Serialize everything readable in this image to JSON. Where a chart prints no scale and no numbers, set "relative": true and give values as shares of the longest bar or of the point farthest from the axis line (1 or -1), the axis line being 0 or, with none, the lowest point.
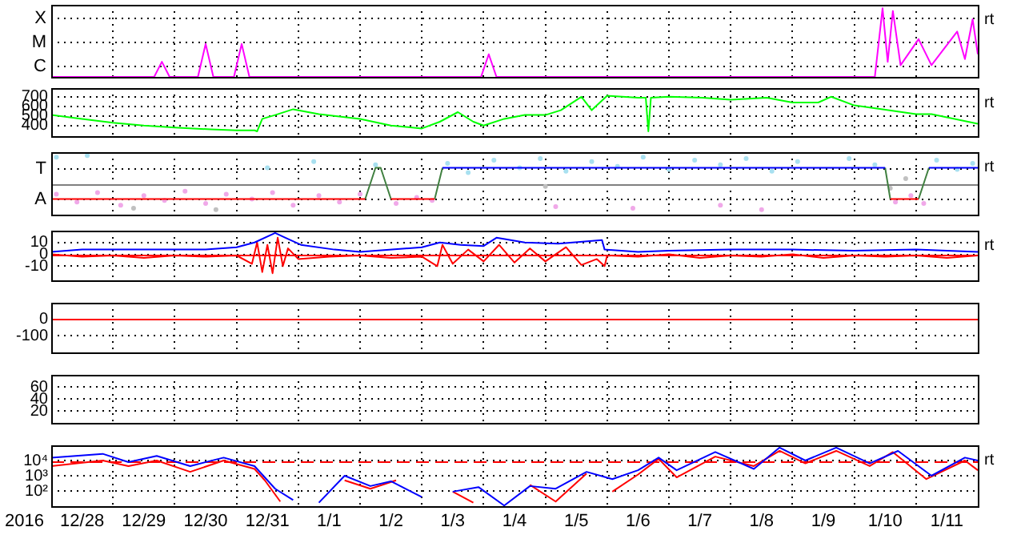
{
  "chart_data": [
    {
      "type": "line",
      "relative": true,
      "xlim": [
        "2016-12-28",
        "2017-01-12"
      ],
      "xticks": [
        {
          "value": "2016-12-29",
          "label": null
        },
        {
          "value": "2016-12-30",
          "label": null
        },
        {
          "value": "2016-12-31",
          "label": null
        },
        {
          "value": "2017-01-01",
          "label": null
        },
        {
          "value": "2017-01-02",
          "label": null
        },
        {
          "value": "2017-01-03",
          "label": null
        },
        {
          "value": "2017-01-04",
          "label": null
        },
        {
          "value": "2017-01-05",
          "label": null
        },
        {
          "value": "2017-01-06",
          "label": null
        },
        {
          "value": "2017-01-07",
          "label": null
        },
        {
          "value": "2017-01-08",
          "label": null
        },
        {
          "value": "2017-01-09",
          "label": null
        },
        {
          "value": "2017-01-10",
          "label": null
        },
        {
          "value": "2017-01-11",
          "label": null
        }
      ],
      "grid": true,
      "legend": false,
      "tick_labels": false,
      "marker": "none",
      "annotations": [
        "rt",
        "X",
        "M",
        "C"
      ],
      "series": [
        {
          "color": "#ff00ff",
          "x": [
            "2016-12-28T00:00",
            "2016-12-29T16:00",
            "2016-12-29T19:00",
            "2016-12-29T22:00",
            "2016-12-30T09:00",
            "2016-12-30T12:00",
            "2016-12-30T15:00",
            "2016-12-30T23:00",
            "2016-12-31T02:00",
            "2016-12-31T05:00",
            "2017-01-03T23:00",
            "2017-01-04T02:00",
            "2017-01-04T05:00",
            "2017-01-10T08:00",
            "2017-01-10T11:00",
            "2017-01-10T13:00",
            "2017-01-10T15:00",
            "2017-01-10T18:00",
            "2017-01-11T01:00",
            "2017-01-11T06:00",
            "2017-01-11T16:00",
            "2017-01-11T19:00",
            "2017-01-11T22:00",
            "2017-01-12T00:00"
          ],
          "values": [
            0,
            0,
            0.22,
            0,
            0,
            0.48,
            0,
            0,
            0.48,
            0,
            0,
            0.33,
            0,
            0,
            1,
            0.22,
            0.96,
            0.17,
            0.55,
            0.17,
            0.66,
            0.26,
            0.84,
            0.33
          ]
        }
      ]
    },
    {
      "type": "line",
      "ylim": [
        290,
        790
      ],
      "yticks": [
        700,
        600,
        500,
        400
      ],
      "xlim": [
        "2016-12-28",
        "2017-01-12"
      ],
      "xticks": [
        {
          "value": "2016-12-29",
          "label": null
        },
        {
          "value": "2016-12-30",
          "label": null
        },
        {
          "value": "2016-12-31",
          "label": null
        },
        {
          "value": "2017-01-01",
          "label": null
        },
        {
          "value": "2017-01-02",
          "label": null
        },
        {
          "value": "2017-01-03",
          "label": null
        },
        {
          "value": "2017-01-04",
          "label": null
        },
        {
          "value": "2017-01-05",
          "label": null
        },
        {
          "value": "2017-01-06",
          "label": null
        },
        {
          "value": "2017-01-07",
          "label": null
        },
        {
          "value": "2017-01-08",
          "label": null
        },
        {
          "value": "2017-01-09",
          "label": null
        },
        {
          "value": "2017-01-10",
          "label": null
        },
        {
          "value": "2017-01-11",
          "label": null
        }
      ],
      "grid": true,
      "legend": false,
      "tick_labels": "y",
      "marker": "none",
      "annotations": [
        "rt"
      ],
      "series": [
        {
          "color": "#00ff00",
          "x": [
            "2016-12-28T00:00",
            "2016-12-28T12:00",
            "2016-12-29T00:00",
            "2016-12-29T12:00",
            "2016-12-30T00:00",
            "2016-12-30T14:00",
            "2016-12-31T00:00",
            "2016-12-31T07:00",
            "2016-12-31T08:00",
            "2016-12-31T10:00",
            "2016-12-31T15:00",
            "2016-12-31T22:00",
            "2017-01-01T08:00",
            "2017-01-02T00:00",
            "2017-01-02T12:00",
            "2017-01-03T00:00",
            "2017-01-03T07:00",
            "2017-01-03T14:00",
            "2017-01-03T20:00",
            "2017-01-04T00:00",
            "2017-01-04T08:00",
            "2017-01-04T16:00",
            "2017-01-05T00:00",
            "2017-01-05T06:00",
            "2017-01-05T14:00",
            "2017-01-05T18:00",
            "2017-01-06T00:00",
            "2017-01-06T12:00",
            "2017-01-06T15:00",
            "2017-01-06T16:00",
            "2017-01-06T17:00",
            "2017-01-07T00:00",
            "2017-01-07T13:00",
            "2017-01-08T00:00",
            "2017-01-08T14:00",
            "2017-01-09T00:00",
            "2017-01-09T10:00",
            "2017-01-09T15:00",
            "2017-01-10T00:00",
            "2017-01-10T11:00",
            "2017-01-11T00:00",
            "2017-01-11T06:00",
            "2017-01-12T00:00"
          ],
          "values": [
            510,
            470,
            430,
            400,
            380,
            360,
            350,
            350,
            340,
            470,
            510,
            570,
            520,
            470,
            400,
            370,
            440,
            540,
            440,
            400,
            470,
            510,
            510,
            560,
            700,
            560,
            710,
            690,
            690,
            340,
            690,
            700,
            690,
            670,
            690,
            640,
            640,
            700,
            610,
            570,
            520,
            520,
            420
          ]
        }
      ]
    },
    {
      "type": "scatter",
      "relative": true,
      "xlim": [
        "2016-12-28",
        "2017-01-12"
      ],
      "xticks": [
        {
          "value": "2016-12-29",
          "label": null
        },
        {
          "value": "2016-12-30",
          "label": null
        },
        {
          "value": "2016-12-31",
          "label": null
        },
        {
          "value": "2017-01-01",
          "label": null
        },
        {
          "value": "2017-01-02",
          "label": null
        },
        {
          "value": "2017-01-03",
          "label": null
        },
        {
          "value": "2017-01-04",
          "label": null
        },
        {
          "value": "2017-01-05",
          "label": null
        },
        {
          "value": "2017-01-06",
          "label": null
        },
        {
          "value": "2017-01-07",
          "label": null
        },
        {
          "value": "2017-01-08",
          "label": null
        },
        {
          "value": "2017-01-09",
          "label": null
        },
        {
          "value": "2017-01-10",
          "label": null
        },
        {
          "value": "2017-01-11",
          "label": null
        }
      ],
      "grid": true,
      "legend": false,
      "tick_labels": false,
      "marker": "circle",
      "annotations": [
        "rt",
        "T",
        "A"
      ],
      "ref_lines": [
        {
          "axis": "y",
          "value": 0,
          "color": "#808080"
        }
      ],
      "series": [
        {
          "color": "#f0a8e8",
          "x": [
            "2016-12-28T02:00",
            "2016-12-28T10:00",
            "2016-12-28T18:00",
            "2016-12-29T03:00",
            "2016-12-29T12:00",
            "2016-12-29T20:00",
            "2016-12-30T04:00",
            "2016-12-30T12:00",
            "2016-12-30T20:00",
            "2016-12-31T06:00",
            "2016-12-31T14:00",
            "2016-12-31T22:00",
            "2017-01-01T08:00",
            "2017-01-01T16:00",
            "2017-01-02T00:00",
            "2017-01-02T14:00",
            "2017-01-02T22:00",
            "2017-01-03T04:00",
            "2017-01-05T04:00",
            "2017-01-06T10:00",
            "2017-01-07T20:00",
            "2017-01-08T12:00",
            "2017-01-10T16:00",
            "2017-01-10T22:00",
            "2017-01-11T03:00"
          ],
          "values": [
            -0.39,
            -0.67,
            -0.33,
            -0.78,
            -0.44,
            -0.61,
            -0.28,
            -0.72,
            -0.39,
            -0.56,
            -0.33,
            -0.78,
            -0.44,
            -0.67,
            -0.39,
            -0.72,
            -0.5,
            -0.61,
            -0.83,
            -0.89,
            -0.78,
            -0.94,
            -0.67,
            -0.44,
            -0.72
          ]
        },
        {
          "color": "#a8e0f0",
          "x": [
            "2016-12-28T02:00",
            "2016-12-28T14:00",
            "2016-12-31T12:00",
            "2017-01-01T06:00",
            "2017-01-02T06:00",
            "2017-01-03T10:00",
            "2017-01-03T18:00",
            "2017-01-04T04:00",
            "2017-01-04T14:00",
            "2017-01-04T22:00",
            "2017-01-05T08:00",
            "2017-01-05T18:00",
            "2017-01-06T04:00",
            "2017-01-06T14:00",
            "2017-01-07T00:00",
            "2017-01-07T10:00",
            "2017-01-07T20:00",
            "2017-01-08T06:00",
            "2017-01-08T16:00",
            "2017-01-09T02:00",
            "2017-01-09T12:00",
            "2017-01-09T22:00",
            "2017-01-10T08:00",
            "2017-01-11T08:00",
            "2017-01-11T16:00",
            "2017-01-11T22:00"
          ],
          "values": [
            0.94,
            1,
            0.56,
            0.78,
            0.67,
            0.72,
            0.39,
            0.83,
            0.56,
            0.89,
            0.44,
            0.78,
            0.61,
            0.94,
            0.5,
            0.83,
            0.67,
            0.89,
            0.44,
            0.78,
            null,
            0.89,
            0.67,
            0.83,
            0.5,
            0.72
          ]
        },
        {
          "color": "#c0c0c0",
          "x": [
            "2016-12-29T08:00",
            "2016-12-30T16:00",
            "2017-01-05T00:00",
            "2017-01-10T14:00",
            "2017-01-10T20:00"
          ],
          "values": [
            -0.89,
            -0.94,
            -0.11,
            -0.17,
            0.17
          ]
        },
        {
          "type": "line",
          "marker": "none",
          "color": "#ff0000",
          "x": [
            "2016-12-28T00:00",
            "2017-01-02T02:00",
            "2017-01-02T03:00",
            "2017-01-02T12:00",
            "2017-01-03T05:00",
            "2017-01-03T06:00",
            "2017-01-10T14:00",
            "2017-01-11T01:00"
          ],
          "values": [
            -0.56,
            -0.56,
            null,
            -0.56,
            -0.56,
            null,
            -0.56,
            -0.56
          ]
        },
        {
          "type": "line",
          "marker": "none",
          "color": "#0000ff",
          "x": [
            "2017-01-03T08:00",
            "2017-01-10T12:00",
            "2017-01-10T13:00",
            "2017-01-11T05:00",
            "2017-01-12T00:00"
          ],
          "values": [
            0.56,
            0.56,
            null,
            0.56,
            0.56
          ]
        },
        {
          "type": "line",
          "marker": "none",
          "color": "#408040",
          "x": [
            "2017-01-02T02:00",
            "2017-01-02T06:00",
            "2017-01-02T08:00",
            "2017-01-02T12:00",
            "2017-01-02T13:00",
            "2017-01-03T05:00",
            "2017-01-03T08:00",
            "2017-01-03T09:00",
            "2017-01-10T12:00",
            "2017-01-10T14:00",
            "2017-01-10T15:00",
            "2017-01-11T01:00",
            "2017-01-11T05:00"
          ],
          "values": [
            -0.56,
            0.56,
            0.56,
            -0.56,
            null,
            -0.56,
            0.56,
            null,
            0.56,
            -0.56,
            null,
            -0.56,
            0.56
          ]
        }
      ]
    },
    {
      "type": "line",
      "ylim": [
        -22,
        20
      ],
      "yticks": [
        10,
        0,
        -10
      ],
      "xlim": [
        "2016-12-28",
        "2017-01-12"
      ],
      "xticks": [
        {
          "value": "2016-12-29",
          "label": null
        },
        {
          "value": "2016-12-30",
          "label": null
        },
        {
          "value": "2016-12-31",
          "label": null
        },
        {
          "value": "2017-01-01",
          "label": null
        },
        {
          "value": "2017-01-02",
          "label": null
        },
        {
          "value": "2017-01-03",
          "label": null
        },
        {
          "value": "2017-01-04",
          "label": null
        },
        {
          "value": "2017-01-05",
          "label": null
        },
        {
          "value": "2017-01-06",
          "label": null
        },
        {
          "value": "2017-01-07",
          "label": null
        },
        {
          "value": "2017-01-08",
          "label": null
        },
        {
          "value": "2017-01-09",
          "label": null
        },
        {
          "value": "2017-01-10",
          "label": null
        },
        {
          "value": "2017-01-11",
          "label": null
        }
      ],
      "grid": true,
      "legend": false,
      "tick_labels": "y",
      "marker": "none",
      "annotations": [
        "rt"
      ],
      "ref_lines": [
        {
          "axis": "y",
          "value": 0,
          "color": "#ff0000"
        }
      ],
      "series": [
        {
          "color": "#0000ff",
          "x": [
            "2016-12-28T00:00",
            "2016-12-28T12:00",
            "2016-12-29T12:00",
            "2016-12-30T12:00",
            "2016-12-31T00:00",
            "2016-12-31T07:00",
            "2016-12-31T15:00",
            "2016-12-31T19:00",
            "2017-01-01T01:00",
            "2017-01-01T14:00",
            "2017-01-02T00:00",
            "2017-01-03T00:00",
            "2017-01-03T07:00",
            "2017-01-03T15:00",
            "2017-01-04T00:00",
            "2017-01-04T05:00",
            "2017-01-04T16:00",
            "2017-01-05T05:00",
            "2017-01-05T22:00",
            "2017-01-05T23:00",
            "2017-01-06T12:00",
            "2017-01-07T00:00",
            "2017-01-08T00:00",
            "2017-01-09T00:00",
            "2017-01-10T00:00",
            "2017-01-11T00:00",
            "2017-01-12T00:00"
          ],
          "values": [
            2,
            4,
            4,
            4,
            6,
            10,
            18,
            14,
            8,
            4,
            2,
            6,
            10,
            8,
            7,
            14,
            10,
            9,
            12,
            4,
            2,
            3,
            4,
            4,
            3,
            4,
            2
          ]
        },
        {
          "color": "#ff0000",
          "x": [
            "2016-12-28T00:00",
            "2016-12-28T12:00",
            "2016-12-29T00:00",
            "2016-12-29T12:00",
            "2016-12-30T00:00",
            "2016-12-30T12:00",
            "2016-12-31T00:00",
            "2016-12-31T06:00",
            "2016-12-31T08:00",
            "2016-12-31T10:00",
            "2016-12-31T12:00",
            "2016-12-31T14:00",
            "2016-12-31T16:00",
            "2016-12-31T18:00",
            "2016-12-31T20:00",
            "2017-01-01T00:00",
            "2017-01-01T12:00",
            "2017-01-02T00:00",
            "2017-01-02T12:00",
            "2017-01-03T00:00",
            "2017-01-03T06:00",
            "2017-01-03T08:00",
            "2017-01-03T12:00",
            "2017-01-03T18:00",
            "2017-01-04T00:00",
            "2017-01-04T06:00",
            "2017-01-04T12:00",
            "2017-01-04T18:00",
            "2017-01-05T00:00",
            "2017-01-05T08:00",
            "2017-01-05T14:00",
            "2017-01-05T20:00",
            "2017-01-05T23:00",
            "2017-01-06T00:00",
            "2017-01-06T12:00",
            "2017-01-07T00:00",
            "2017-01-07T12:00",
            "2017-01-08T00:00",
            "2017-01-08T12:00",
            "2017-01-09T00:00",
            "2017-01-09T12:00",
            "2017-01-10T00:00",
            "2017-01-10T12:00",
            "2017-01-11T00:00",
            "2017-01-11T12:00",
            "2017-01-12T00:00"
          ],
          "values": [
            0,
            -2,
            -1,
            -3,
            -1,
            -2,
            -1,
            -8,
            10,
            -15,
            8,
            -16,
            14,
            -10,
            5,
            -4,
            -2,
            -1,
            -3,
            -2,
            -10,
            8,
            -8,
            4,
            -6,
            8,
            -7,
            5,
            -6,
            6,
            -9,
            -4,
            -10,
            -1,
            -2,
            0,
            -3,
            -1,
            -2,
            0,
            -3,
            -1,
            -2,
            -1,
            -3,
            -1
          ]
        }
      ]
    },
    {
      "type": "line",
      "ylim": [
        -200,
        100
      ],
      "yticks": [
        0,
        -100
      ],
      "xlim": [
        "2016-12-28",
        "2017-01-12"
      ],
      "xticks": [
        {
          "value": "2016-12-29",
          "label": null
        },
        {
          "value": "2016-12-30",
          "label": null
        },
        {
          "value": "2016-12-31",
          "label": null
        },
        {
          "value": "2017-01-01",
          "label": null
        },
        {
          "value": "2017-01-02",
          "label": null
        },
        {
          "value": "2017-01-03",
          "label": null
        },
        {
          "value": "2017-01-04",
          "label": null
        },
        {
          "value": "2017-01-05",
          "label": null
        },
        {
          "value": "2017-01-06",
          "label": null
        },
        {
          "value": "2017-01-07",
          "label": null
        },
        {
          "value": "2017-01-08",
          "label": null
        },
        {
          "value": "2017-01-09",
          "label": null
        },
        {
          "value": "2017-01-10",
          "label": null
        },
        {
          "value": "2017-01-11",
          "label": null
        }
      ],
      "grid": true,
      "legend": false,
      "tick_labels": "y",
      "ref_lines": [
        {
          "axis": "y",
          "value": 0,
          "color": "#ff0000"
        }
      ]
    },
    {
      "type": "line",
      "ylim": [
        0,
        80
      ],
      "yticks": [
        60,
        40,
        20
      ],
      "xlim": [
        "2016-12-28",
        "2017-01-12"
      ],
      "xticks": [
        {
          "value": "2016-12-29",
          "label": null
        },
        {
          "value": "2016-12-30",
          "label": null
        },
        {
          "value": "2016-12-31",
          "label": null
        },
        {
          "value": "2017-01-01",
          "label": null
        },
        {
          "value": "2017-01-02",
          "label": null
        },
        {
          "value": "2017-01-03",
          "label": null
        },
        {
          "value": "2017-01-04",
          "label": null
        },
        {
          "value": "2017-01-05",
          "label": null
        },
        {
          "value": "2017-01-06",
          "label": null
        },
        {
          "value": "2017-01-07",
          "label": null
        },
        {
          "value": "2017-01-08",
          "label": null
        },
        {
          "value": "2017-01-09",
          "label": null
        },
        {
          "value": "2017-01-10",
          "label": null
        },
        {
          "value": "2017-01-11",
          "label": null
        }
      ],
      "grid": true,
      "legend": false,
      "tick_labels": "y"
    },
    {
      "type": "line",
      "log": true,
      "ylim": [
        10,
        100000
      ],
      "yticks": [
        {
          "value": 10000,
          "label": "10⁴"
        },
        {
          "value": 1000,
          "label": "10³"
        },
        {
          "value": 100,
          "label": "10²"
        }
      ],
      "xlabel": "2016",
      "xlim": [
        "2016-12-28",
        "2017-01-12"
      ],
      "xticks": [
        {
          "value": "2016-12-28T12:00",
          "label": "12/28"
        },
        {
          "value": "2016-12-29",
          "label": null
        },
        {
          "value": "2016-12-29T12:00",
          "label": "12/29"
        },
        {
          "value": "2016-12-30",
          "label": null
        },
        {
          "value": "2016-12-30T12:00",
          "label": "12/30"
        },
        {
          "value": "2016-12-31",
          "label": null
        },
        {
          "value": "2016-12-31T12:00",
          "label": "12/31"
        },
        {
          "value": "2017-01-01",
          "label": null
        },
        {
          "value": "2017-01-01T12:00",
          "label": "1/1"
        },
        {
          "value": "2017-01-02",
          "label": null
        },
        {
          "value": "2017-01-02T12:00",
          "label": "1/2"
        },
        {
          "value": "2017-01-03",
          "label": null
        },
        {
          "value": "2017-01-03T12:00",
          "label": "1/3"
        },
        {
          "value": "2017-01-04",
          "label": null
        },
        {
          "value": "2017-01-04T12:00",
          "label": "1/4"
        },
        {
          "value": "2017-01-05",
          "label": null
        },
        {
          "value": "2017-01-05T12:00",
          "label": "1/5"
        },
        {
          "value": "2017-01-06",
          "label": null
        },
        {
          "value": "2017-01-06T12:00",
          "label": "1/6"
        },
        {
          "value": "2017-01-07",
          "label": null
        },
        {
          "value": "2017-01-07T12:00",
          "label": "1/7"
        },
        {
          "value": "2017-01-08",
          "label": null
        },
        {
          "value": "2017-01-08T12:00",
          "label": "1/8"
        },
        {
          "value": "2017-01-09",
          "label": null
        },
        {
          "value": "2017-01-09T12:00",
          "label": "1/9"
        },
        {
          "value": "2017-01-10",
          "label": null
        },
        {
          "value": "2017-01-10T12:00",
          "label": "1/10"
        },
        {
          "value": "2017-01-11",
          "label": null
        },
        {
          "value": "2017-01-11T12:00",
          "label": "1/11"
        }
      ],
      "grid": true,
      "legend": false,
      "marker": "none",
      "annotations": [
        "rt"
      ],
      "ref_lines": [
        {
          "axis": "y",
          "value": 10000,
          "color": "#ff0000",
          "line_style": "dashed"
        }
      ],
      "series": [
        {
          "color": "#0000ff",
          "x": [
            "2016-12-28T00:00",
            "2016-12-28T20:00",
            "2016-12-29T06:00",
            "2016-12-29T17:00",
            "2016-12-30T06:00",
            "2016-12-30T19:00",
            "2016-12-31T07:00",
            "2016-12-31T15:00",
            "2016-12-31T22:00",
            "2017-01-01T03:00",
            "2017-01-01T08:00",
            "2017-01-01T18:00",
            "2017-01-02T04:00",
            "2017-01-02T12:00",
            "2017-01-03T00:00",
            "2017-01-03T05:00",
            "2017-01-03T12:00",
            "2017-01-03T22:00",
            "2017-01-04T08:00",
            "2017-01-04T18:00",
            "2017-01-05T04:00",
            "2017-01-05T16:00",
            "2017-01-06T02:00",
            "2017-01-06T12:00",
            "2017-01-06T20:00",
            "2017-01-07T03:00",
            "2017-01-07T18:00",
            "2017-01-08T09:00",
            "2017-01-08T19:00",
            "2017-01-09T05:00",
            "2017-01-09T17:00",
            "2017-01-10T06:00",
            "2017-01-10T17:00",
            "2017-01-11T06:00",
            "2017-01-11T19:00",
            "2017-01-12T00:00"
          ],
          "values": [
            15500,
            27500,
            7900,
            20000,
            4300,
            15500,
            4300,
            140,
            25,
            null,
            17,
            1000,
            210,
            430,
            40,
            null,
            90,
            180,
            11,
            210,
            140,
            1800,
            600,
            2300,
            15500,
            2300,
            36000,
            2800,
            71000,
            10000,
            71000,
            6500,
            43000,
            1000,
            15500,
            10000
          ]
        },
        {
          "color": "#ff0000",
          "x": [
            "2016-12-28T00:00",
            "2016-12-28T20:00",
            "2016-12-29T06:00",
            "2016-12-29T17:00",
            "2016-12-30T06:00",
            "2016-12-30T19:00",
            "2016-12-31T07:00",
            "2016-12-31T11:00",
            "2016-12-31T17:00",
            "2016-12-31T22:00",
            "2017-01-01T08:00",
            "2017-01-01T18:00",
            "2017-01-02T04:00",
            "2017-01-02T14:00",
            "2017-01-03T05:00",
            "2017-01-03T12:00",
            "2017-01-03T20:00",
            "2017-01-04T08:00",
            "2017-01-04T18:00",
            "2017-01-05T04:00",
            "2017-01-05T16:00",
            "2017-01-05T23:00",
            "2017-01-06T02:00",
            "2017-01-06T12:00",
            "2017-01-06T20:00",
            "2017-01-07T03:00",
            "2017-01-07T18:00",
            "2017-01-08T09:00",
            "2017-01-08T19:00",
            "2017-01-09T05:00",
            "2017-01-09T17:00",
            "2017-01-10T06:00",
            "2017-01-10T15:00",
            "2017-01-11T04:00",
            "2017-01-11T19:00",
            "2017-01-12T00:00"
          ],
          "values": [
            4300,
            10000,
            4300,
            10000,
            1800,
            10000,
            2800,
            500,
            20,
            null,
            null,
            500,
            140,
            500,
            null,
            90,
            17,
            null,
            250,
            20,
            1400,
            null,
            90,
            1200,
            13000,
            780,
            18000,
            4300,
            43000,
            6500,
            43000,
            4300,
            36000,
            600,
            10000,
            2300
          ]
        }
      ]
    }
  ]
}
